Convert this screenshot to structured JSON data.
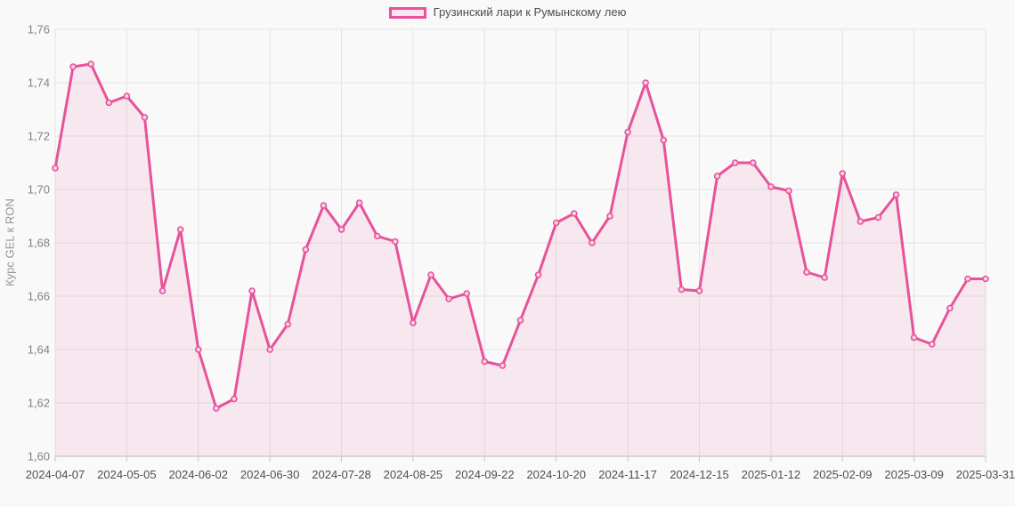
{
  "page": {
    "background": "#f9f9f9"
  },
  "legend": {
    "label": "Грузинский лари к Румынскому лею"
  },
  "y_axis": {
    "title": "Курс GEL к RON",
    "min": 1.6,
    "max": 1.76,
    "step": 0.02,
    "decimal_separator": ","
  },
  "chart_data": {
    "type": "area",
    "title": "",
    "xlabel": "",
    "ylabel": "Курс GEL к RON",
    "legend": [
      "Грузинский лари к Румынскому лею"
    ],
    "legend_position": "top-center",
    "grid": true,
    "ylim": [
      1.6,
      1.76
    ],
    "y_ticks": [
      "1,60",
      "1,62",
      "1,64",
      "1,66",
      "1,68",
      "1,70",
      "1,72",
      "1,74",
      "1,76"
    ],
    "x": [
      "2024-04-07",
      "2024-04-14",
      "2024-04-21",
      "2024-04-28",
      "2024-05-05",
      "2024-05-12",
      "2024-05-19",
      "2024-05-26",
      "2024-06-02",
      "2024-06-09",
      "2024-06-16",
      "2024-06-23",
      "2024-06-30",
      "2024-07-07",
      "2024-07-14",
      "2024-07-21",
      "2024-07-28",
      "2024-08-04",
      "2024-08-11",
      "2024-08-18",
      "2024-08-25",
      "2024-09-01",
      "2024-09-08",
      "2024-09-15",
      "2024-09-22",
      "2024-09-29",
      "2024-10-06",
      "2024-10-13",
      "2024-10-20",
      "2024-10-27",
      "2024-11-03",
      "2024-11-10",
      "2024-11-17",
      "2024-11-24",
      "2024-12-01",
      "2024-12-08",
      "2024-12-15",
      "2024-12-22",
      "2024-12-29",
      "2025-01-05",
      "2025-01-12",
      "2025-01-19",
      "2025-01-26",
      "2025-02-02",
      "2025-02-09",
      "2025-02-16",
      "2025-02-23",
      "2025-03-02",
      "2025-03-09",
      "2025-03-16",
      "2025-03-23",
      "2025-03-30",
      "2025-03-31"
    ],
    "values": [
      1.708,
      1.746,
      1.747,
      1.7325,
      1.735,
      1.727,
      1.662,
      1.685,
      1.64,
      1.618,
      1.6215,
      1.662,
      1.64,
      1.6495,
      1.6775,
      1.694,
      1.685,
      1.695,
      1.6825,
      1.6805,
      1.65,
      1.668,
      1.659,
      1.661,
      1.6355,
      1.634,
      1.651,
      1.668,
      1.6875,
      1.691,
      1.68,
      1.69,
      1.7215,
      1.74,
      1.7185,
      1.6625,
      1.662,
      1.705,
      1.71,
      1.71,
      1.701,
      1.6995,
      1.669,
      1.667,
      1.706,
      1.688,
      1.6895,
      1.698,
      1.6445,
      1.642,
      1.6555,
      1.6665,
      1.6665
    ],
    "x_tick_labels": [
      "2024-04-07",
      "2024-05-05",
      "2024-06-02",
      "2024-06-30",
      "2024-07-28",
      "2024-08-25",
      "2024-09-22",
      "2024-10-20",
      "2024-11-17",
      "2024-12-15",
      "2025-01-12",
      "2025-02-09",
      "2025-03-09",
      "2025-03-31"
    ],
    "x_tick_every": 4,
    "colors": {
      "line": "#e7529b",
      "marker_fill": "#f8d3e5",
      "area": "rgba(231,82,155,0.10)",
      "grid": "#e3e3e3",
      "axis_line": "#c6c6c6",
      "x_tick_text": "#4f4f4f",
      "y_tick_text": "#828282"
    }
  }
}
